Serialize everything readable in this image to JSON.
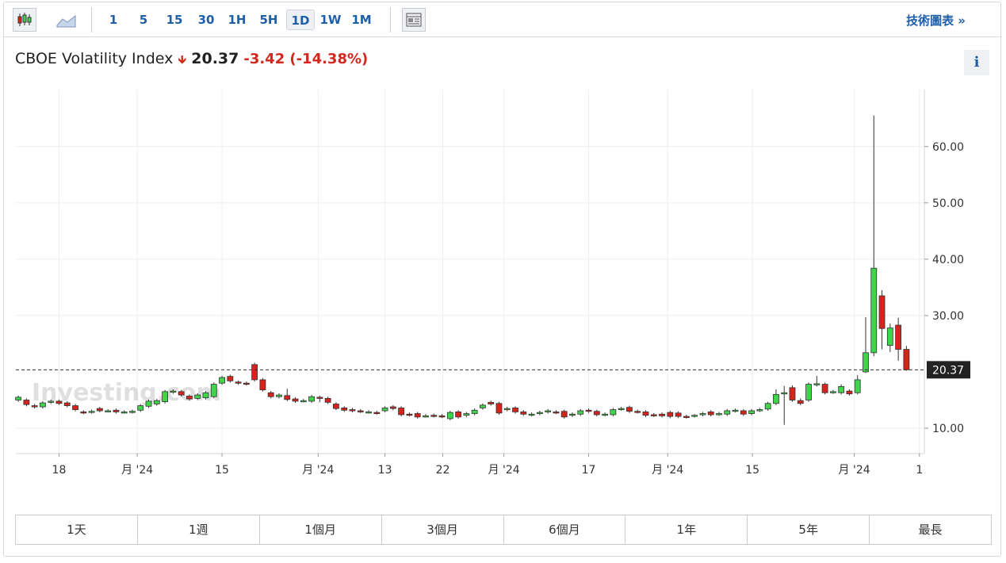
{
  "toolbar": {
    "intervals": [
      "1",
      "5",
      "15",
      "30",
      "1H",
      "5H",
      "1D",
      "1W",
      "1M"
    ],
    "active_interval": "1D",
    "link": "技術圖表 »"
  },
  "header": {
    "name": "CBOE Volatility Index",
    "price": 20.37,
    "change": -3.42,
    "change_pct": "(-14.38%)",
    "info": "i"
  },
  "range_tabs": [
    "1天",
    "1週",
    "1個月",
    "3個月",
    "6個月",
    "1年",
    "5年",
    "最長"
  ],
  "chart_data": {
    "type": "candlestick",
    "watermark": "Investing.com",
    "up_color": "#3fd44a",
    "down_color": "#d8231d",
    "last_price": 20.37,
    "xlim": [
      -0.3,
      111.2
    ],
    "xticks": [
      {
        "value": 5,
        "label": "18"
      },
      {
        "value": 14.6,
        "label": "月 '24"
      },
      {
        "value": 25,
        "label": "15"
      },
      {
        "value": 36.8,
        "label": "月 '24"
      },
      {
        "value": 45,
        "label": "13"
      },
      {
        "value": 52.1,
        "label": "22"
      },
      {
        "value": 59.6,
        "label": "月 '24"
      },
      {
        "value": 70,
        "label": "17"
      },
      {
        "value": 79.7,
        "label": "月 '24"
      },
      {
        "value": 90.1,
        "label": "15"
      },
      {
        "value": 102.6,
        "label": "月 '24"
      },
      {
        "value": 110.6,
        "label": "1"
      }
    ],
    "ylim": [
      5.5,
      70.1
    ],
    "yticks": [
      {
        "value": 10,
        "label": "10.00"
      },
      {
        "value": 30,
        "label": "30.00"
      },
      {
        "value": 40,
        "label": "40.00"
      },
      {
        "value": 50,
        "label": "50.00"
      },
      {
        "value": 60,
        "label": "60.00"
      }
    ],
    "grid": true,
    "open": [
      15.0,
      15.0,
      14.0,
      13.8,
      14.6,
      14.8,
      14.5,
      14.0,
      12.9,
      12.9,
      13.5,
      13.1,
      13.2,
      12.9,
      12.9,
      13.2,
      13.9,
      14.3,
      14.7,
      16.4,
      16.5,
      15.7,
      15.3,
      15.4,
      15.6,
      18.0,
      19.2,
      18.2,
      18.0,
      21.3,
      18.6,
      16.3,
      15.6,
      15.8,
      15.2,
      14.9,
      14.8,
      15.5,
      15.3,
      14.3,
      13.6,
      13.3,
      13.1,
      12.9,
      12.8,
      13.1,
      13.8,
      13.6,
      12.5,
      12.6,
      12.2,
      12.3,
      12.2,
      11.7,
      12.9,
      12.3,
      12.6,
      13.6,
      14.6,
      14.4,
      13.3,
      13.6,
      12.9,
      12.4,
      12.6,
      12.9,
      12.9,
      13.0,
      12.3,
      12.5,
      13.2,
      13.0,
      12.4,
      12.4,
      13.4,
      13.7,
      13.0,
      12.9,
      12.4,
      12.5,
      12.8,
      12.7,
      12.1,
      12.2,
      12.4,
      12.9,
      12.5,
      12.5,
      13.1,
      13.1,
      12.6,
      13.2,
      13.4,
      14.4,
      16.2,
      17.2,
      14.9,
      15.0,
      17.7,
      17.8,
      16.4,
      16.3,
      16.6,
      16.3,
      20.0,
      23.4,
      33.5,
      24.7,
      28.3,
      24.0
    ],
    "high": [
      15.8,
      15.3,
      14.3,
      14.8,
      15.1,
      15.1,
      14.8,
      14.3,
      13.2,
      13.3,
      13.8,
      13.4,
      13.5,
      13.2,
      13.3,
      14.3,
      15.1,
      15.2,
      16.8,
      16.9,
      16.8,
      16.0,
      16.2,
      16.6,
      18.1,
      19.3,
      19.5,
      18.5,
      18.3,
      21.6,
      18.9,
      16.6,
      16.2,
      17.0,
      15.5,
      15.2,
      15.9,
      15.8,
      15.6,
      14.6,
      13.9,
      13.6,
      13.4,
      13.2,
      13.1,
      13.9,
      14.1,
      13.9,
      12.8,
      12.9,
      12.5,
      12.6,
      12.5,
      13.1,
      13.2,
      12.9,
      13.5,
      14.4,
      14.9,
      14.7,
      13.8,
      13.9,
      13.2,
      12.8,
      13.1,
      13.4,
      13.2,
      13.3,
      12.8,
      13.4,
      13.5,
      13.3,
      12.8,
      13.6,
      13.8,
      14.0,
      13.3,
      13.2,
      12.7,
      12.8,
      13.1,
      13.0,
      12.4,
      12.5,
      12.9,
      13.2,
      12.9,
      13.4,
      13.5,
      13.4,
      13.4,
      13.6,
      14.7,
      16.9,
      17.5,
      17.6,
      15.3,
      18.1,
      19.3,
      18.1,
      16.8,
      17.8,
      16.9,
      19.4,
      29.7,
      65.5,
      34.5,
      28.6,
      29.6,
      24.6
    ],
    "low": [
      14.7,
      13.9,
      13.5,
      13.5,
      14.3,
      14.1,
      13.7,
      13.0,
      12.5,
      12.6,
      12.8,
      12.8,
      12.6,
      12.6,
      12.6,
      12.9,
      13.6,
      14.0,
      14.4,
      16.1,
      15.6,
      14.9,
      15.0,
      15.1,
      15.3,
      17.7,
      18.1,
      17.7,
      17.6,
      18.3,
      16.5,
      15.3,
      15.3,
      14.8,
      14.5,
      14.6,
      14.5,
      14.6,
      14.3,
      13.2,
      12.9,
      12.8,
      12.7,
      12.6,
      12.4,
      12.8,
      13.2,
      12.1,
      12.1,
      11.7,
      11.9,
      11.9,
      11.8,
      11.4,
      11.7,
      12.0,
      12.3,
      13.3,
      14.0,
      12.4,
      13.0,
      12.6,
      12.2,
      12.1,
      12.3,
      12.6,
      12.5,
      11.7,
      12.0,
      12.2,
      12.7,
      12.1,
      12.1,
      12.1,
      13.1,
      12.7,
      12.6,
      12.0,
      12.0,
      11.9,
      11.8,
      11.8,
      11.7,
      11.9,
      12.1,
      12.1,
      12.2,
      12.2,
      12.8,
      12.2,
      12.3,
      12.9,
      13.1,
      14.1,
      10.6,
      14.7,
      14.1,
      14.7,
      17.4,
      16.0,
      16.1,
      16.0,
      15.8,
      16.0,
      19.8,
      22.8,
      24.0,
      23.5,
      22.0,
      20.2
    ],
    "close": [
      15.5,
      14.2,
      13.8,
      14.5,
      14.8,
      14.4,
      14.0,
      13.3,
      12.8,
      13.0,
      13.1,
      13.1,
      12.9,
      12.9,
      13.0,
      14.0,
      14.8,
      14.9,
      16.5,
      16.6,
      15.9,
      15.2,
      15.9,
      16.3,
      17.8,
      19.0,
      18.4,
      18.0,
      17.9,
      18.6,
      16.8,
      15.6,
      15.9,
      15.1,
      14.8,
      14.9,
      15.6,
      15.4,
      14.6,
      13.5,
      13.2,
      13.1,
      13.0,
      12.9,
      12.7,
      13.6,
      13.5,
      12.4,
      12.4,
      12.0,
      12.2,
      12.2,
      12.1,
      12.8,
      12.0,
      12.6,
      13.2,
      14.1,
      14.3,
      12.7,
      13.5,
      12.9,
      12.5,
      12.5,
      12.8,
      13.1,
      12.8,
      12.0,
      12.5,
      13.1,
      13.0,
      12.4,
      12.5,
      13.3,
      13.5,
      13.0,
      12.9,
      12.3,
      12.3,
      12.2,
      12.1,
      12.1,
      12.0,
      12.3,
      12.6,
      12.4,
      12.6,
      13.1,
      13.2,
      12.5,
      13.1,
      13.3,
      14.4,
      16.0,
      16.3,
      15.0,
      14.4,
      17.8,
      17.9,
      16.3,
      16.5,
      17.4,
      16.1,
      18.6,
      23.4,
      38.4,
      27.7,
      27.8,
      24.0,
      20.37
    ]
  }
}
